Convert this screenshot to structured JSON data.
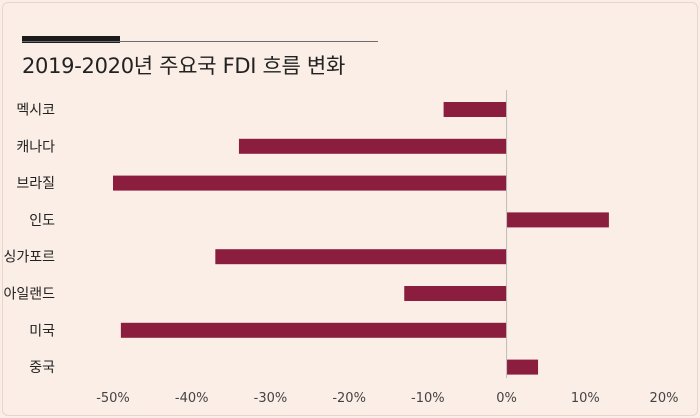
{
  "chart_data": {
    "type": "bar",
    "orientation": "horizontal",
    "title": "2019-2020년 주요국 FDI 흐름 변화",
    "categories": [
      "멕시코",
      "캐나다",
      "브라질",
      "인도",
      "싱가포르",
      "아일랜드",
      "미국",
      "중국"
    ],
    "values": [
      -8,
      -34,
      -50,
      13,
      -37,
      -13,
      -49,
      4
    ],
    "xlim": [
      -50,
      20
    ],
    "xticks": [
      "-50%",
      "-40%",
      "-30%",
      "-20%",
      "-10%",
      "0%",
      "10%",
      "20%"
    ],
    "tick_values": [
      -50,
      -40,
      -30,
      -20,
      -10,
      0,
      10,
      20
    ],
    "bar_color": "#8b1e3f",
    "background": "#fbeee6",
    "grid": false
  }
}
